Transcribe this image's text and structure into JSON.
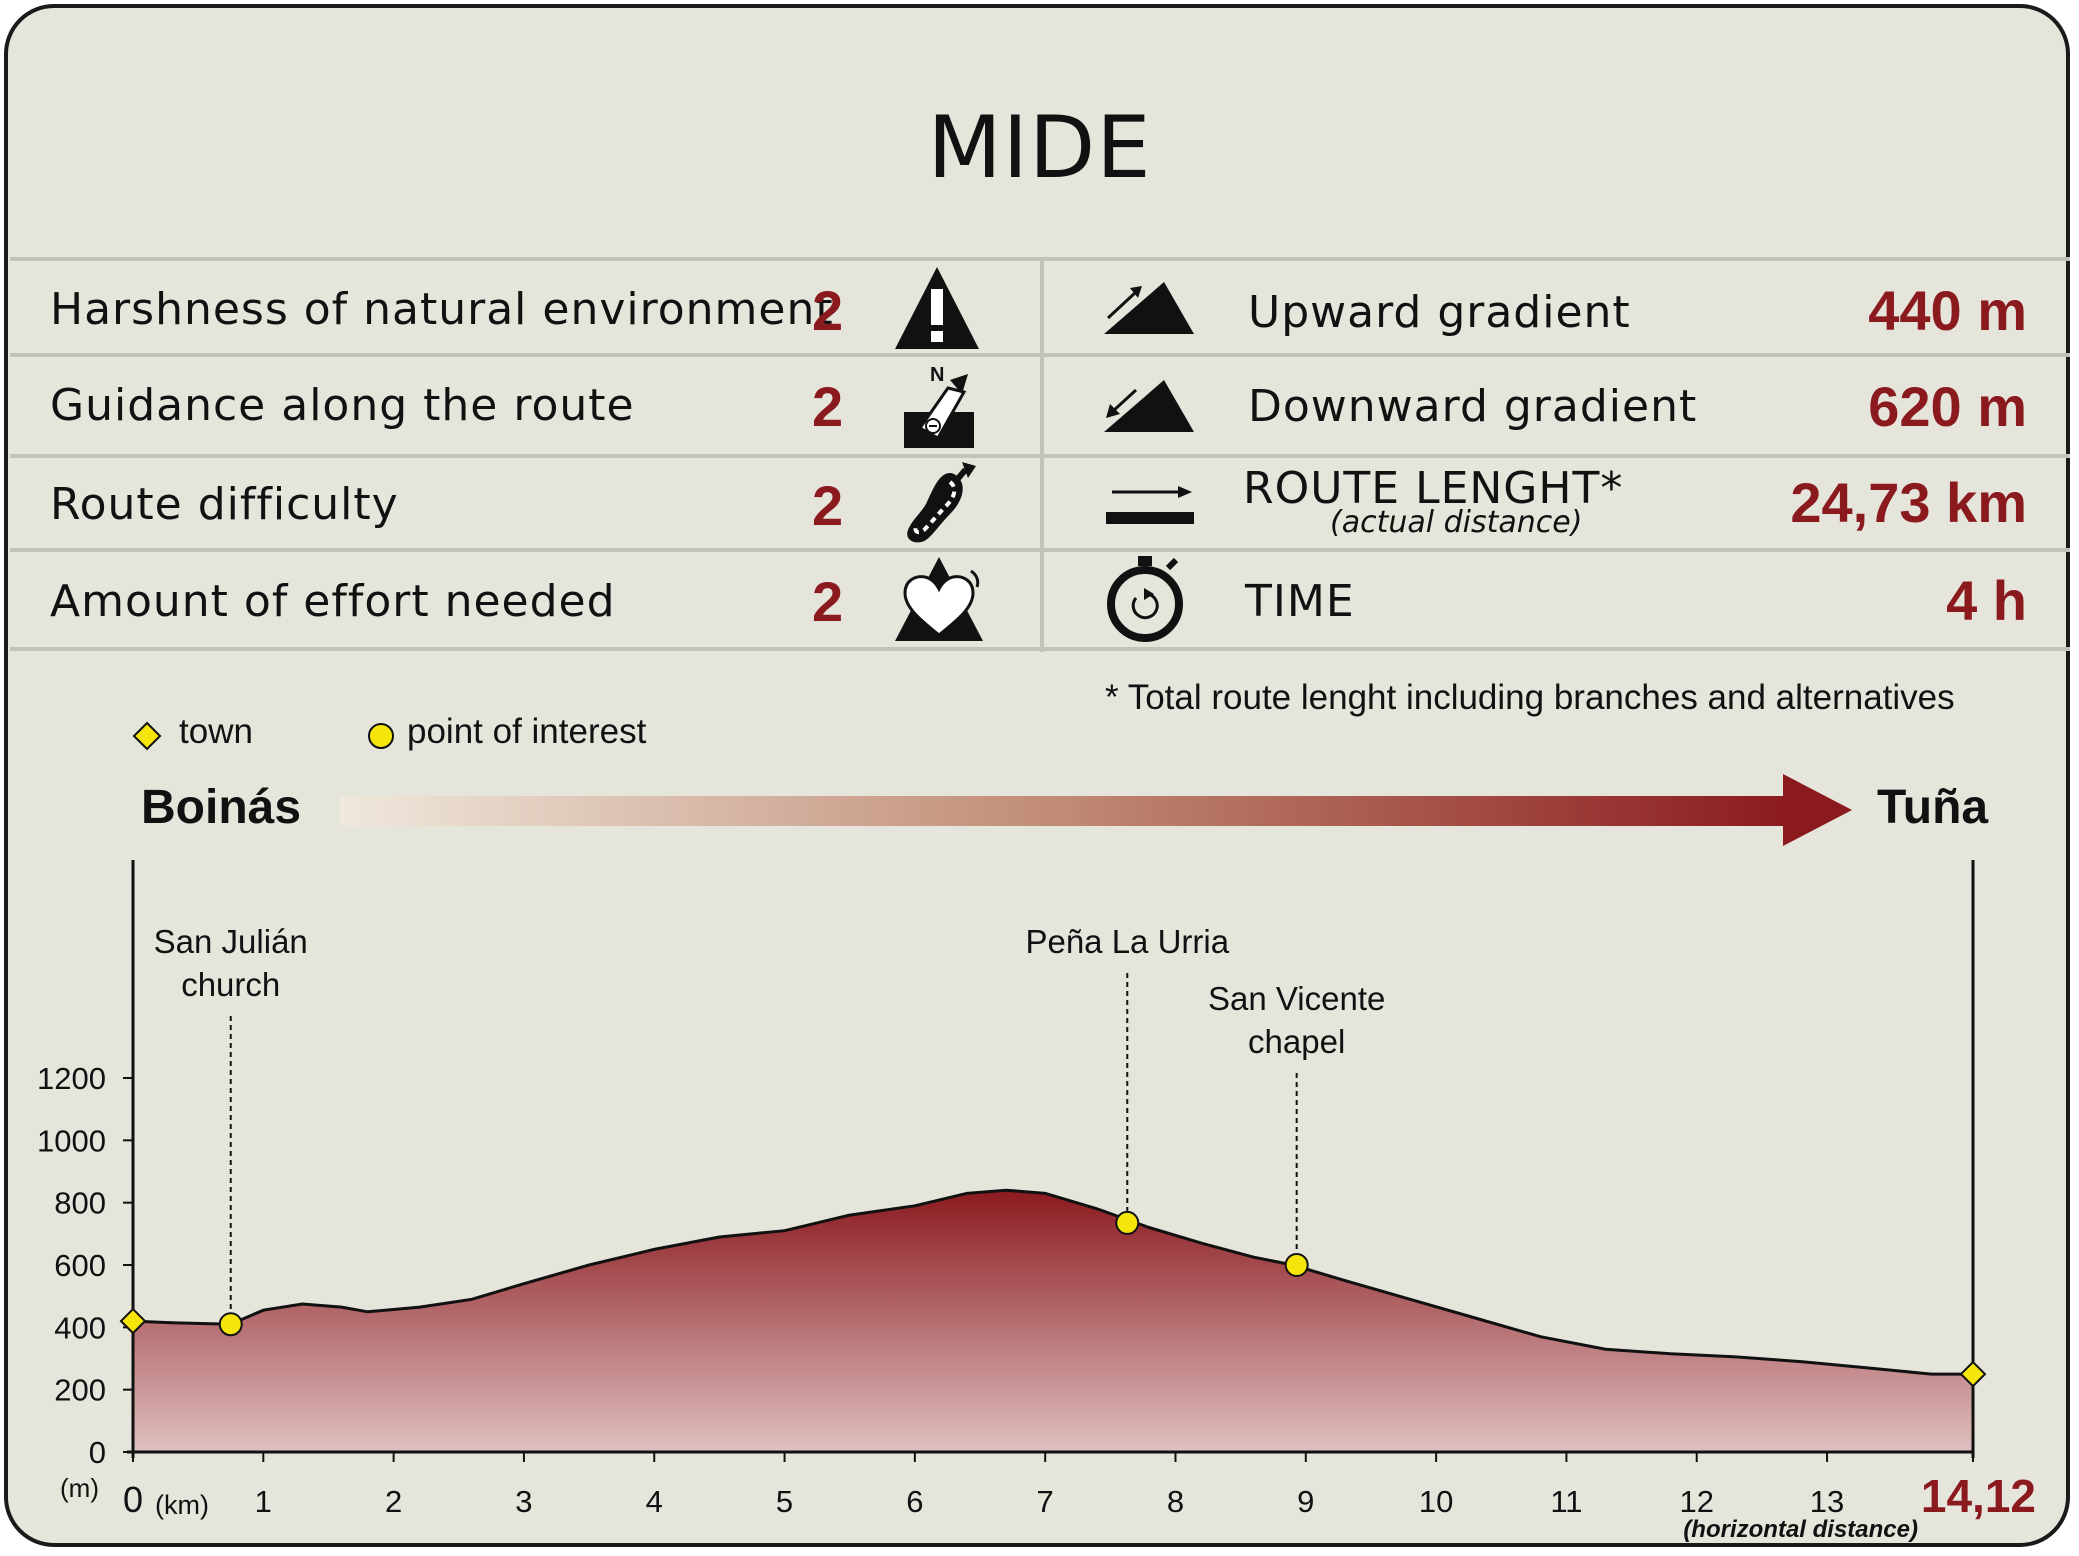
{
  "title": "MIDE",
  "mide_left": [
    {
      "label": "Harshness of natural environment",
      "value": "2",
      "icon": "warning-icon"
    },
    {
      "label": "Guidance along the route",
      "value": "2",
      "icon": "compass-sign-icon"
    },
    {
      "label": "Route difficulty",
      "value": "2",
      "icon": "footprint-icon"
    },
    {
      "label": "Amount of effort needed",
      "value": "2",
      "icon": "heart-effort-icon"
    }
  ],
  "mide_right": [
    {
      "label": "Upward gradient",
      "value": "440 m",
      "icon": "uphill-icon"
    },
    {
      "label": "Downward gradient",
      "value": "620 m",
      "icon": "downhill-icon"
    },
    {
      "label": "ROUTE LENGHT*",
      "sublabel": "(actual distance)",
      "value": "24,73 km",
      "icon": "distance-arrow-icon"
    },
    {
      "label": "TIME",
      "value": "4 h",
      "icon": "stopwatch-icon"
    }
  ],
  "footnote": "* Total route lenght including branches and alternatives",
  "legend": {
    "town": "town",
    "poi": "point of interest"
  },
  "route": {
    "start": "Boinás",
    "end": "Tuña"
  },
  "colors": {
    "accent": "#8b1a1f",
    "marker": "#f5e50a",
    "background": "#e5e5dc"
  },
  "chart_data": {
    "type": "area",
    "title": "",
    "xlabel": "(km)",
    "x_note": "(horizontal distance)",
    "ylabel": "(m)",
    "xlim": [
      0,
      14.12
    ],
    "ylim": [
      0,
      1200
    ],
    "x_ticks": [
      "0",
      "1",
      "2",
      "3",
      "4",
      "5",
      "6",
      "7",
      "8",
      "9",
      "10",
      "11",
      "12",
      "13"
    ],
    "x_end_label": "14,12",
    "y_ticks": [
      "0",
      "200",
      "400",
      "600",
      "800",
      "1000",
      "1200"
    ],
    "profile": [
      [
        0,
        420
      ],
      [
        0.3,
        415
      ],
      [
        0.75,
        410
      ],
      [
        1.0,
        455
      ],
      [
        1.3,
        475
      ],
      [
        1.6,
        465
      ],
      [
        1.8,
        450
      ],
      [
        2.2,
        465
      ],
      [
        2.6,
        490
      ],
      [
        3.0,
        540
      ],
      [
        3.5,
        600
      ],
      [
        4.0,
        650
      ],
      [
        4.5,
        690
      ],
      [
        5.0,
        710
      ],
      [
        5.5,
        760
      ],
      [
        6.0,
        790
      ],
      [
        6.4,
        830
      ],
      [
        6.7,
        840
      ],
      [
        7.0,
        830
      ],
      [
        7.4,
        780
      ],
      [
        7.8,
        720
      ],
      [
        8.2,
        670
      ],
      [
        8.6,
        625
      ],
      [
        8.9,
        600
      ],
      [
        9.3,
        550
      ],
      [
        9.8,
        490
      ],
      [
        10.3,
        430
      ],
      [
        10.8,
        370
      ],
      [
        11.3,
        330
      ],
      [
        11.8,
        315
      ],
      [
        12.3,
        305
      ],
      [
        12.8,
        290
      ],
      [
        13.3,
        270
      ],
      [
        13.8,
        250
      ],
      [
        14.12,
        250
      ]
    ],
    "towns": [
      {
        "x": 0,
        "y": 420
      },
      {
        "x": 14.12,
        "y": 250
      }
    ],
    "points_of_interest": [
      {
        "name_lines": [
          "San Julián",
          "church"
        ],
        "x": 0.75,
        "y": 410
      },
      {
        "name_lines": [
          "Peña La Urria"
        ],
        "x": 7.63,
        "y": 735
      },
      {
        "name_lines": [
          "San Vicente",
          "chapel"
        ],
        "x": 8.93,
        "y": 600
      }
    ]
  }
}
